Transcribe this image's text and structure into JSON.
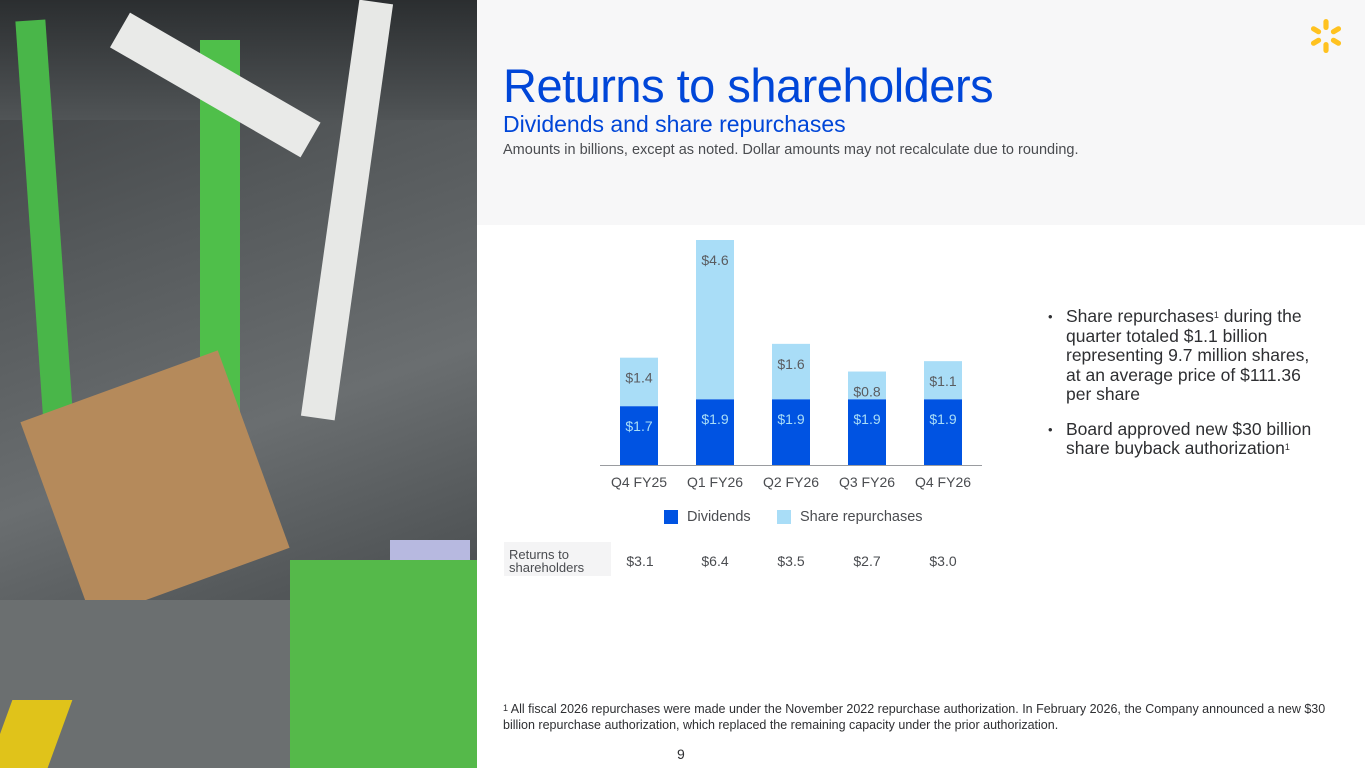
{
  "header": {
    "title": "Returns to shareholders",
    "subtitle": "Dividends and share repurchases",
    "note": "Amounts in billions, except as noted. Dollar amounts may not recalculate due to rounding."
  },
  "logo": {
    "icon": "walmart-spark-icon",
    "color": "#ffc220"
  },
  "colors": {
    "dividends": "#0053e2",
    "repurchases": "#a9ddf7",
    "accent": "#0046d8"
  },
  "chart_data": {
    "type": "bar",
    "stacked": true,
    "categories": [
      "Q4 FY25",
      "Q1 FY26",
      "Q2 FY26",
      "Q3 FY26",
      "Q4 FY26"
    ],
    "series": [
      {
        "name": "Dividends",
        "values": [
          1.7,
          1.9,
          1.9,
          1.9,
          1.9
        ],
        "labels": [
          "$1.7",
          "$1.9",
          "$1.9",
          "$1.9",
          "$1.9"
        ]
      },
      {
        "name": "Share repurchases",
        "values": [
          1.4,
          4.6,
          1.6,
          0.8,
          1.1
        ],
        "labels": [
          "$1.4",
          "$4.6",
          "$1.6",
          "$0.8",
          "$1.1"
        ]
      }
    ],
    "legend": [
      "Dividends",
      "Share repurchases"
    ],
    "legend_position": "bottom",
    "totals_label": "Returns to shareholders",
    "totals": [
      "$3.1",
      "$6.4",
      "$3.5",
      "$2.7",
      "$3.0"
    ],
    "unit": "billions USD",
    "ylim": [
      0,
      6.5
    ],
    "grid": false
  },
  "bullets": [
    {
      "text": "Share repurchases",
      "sup": "1",
      "rest": " during the quarter totaled $1.1 billion representing 9.7 million shares, at an average price of $111.36 per share"
    },
    {
      "text": "Board approved new $30 billion share buyback authorization",
      "sup": "1",
      "rest": ""
    }
  ],
  "footnote": {
    "sup": "1",
    "text": " All fiscal 2026 repurchases were made under the November 2022 repurchase authorization. In February 2026, the Company announced a new $30 billion repurchase authorization, which replaced the remaining capacity under the prior authorization."
  },
  "page_number": "9"
}
